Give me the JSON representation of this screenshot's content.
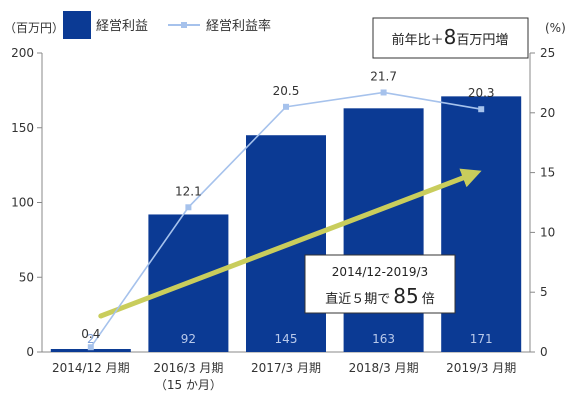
{
  "chart_data": {
    "type": "bar+line",
    "categories": [
      "2014/12 月期",
      "2016/3 月期",
      "2017/3 月期",
      "2018/3 月期",
      "2019/3 月期"
    ],
    "category_sublabels": [
      "",
      "（15 か月）",
      "",
      "",
      ""
    ],
    "series": [
      {
        "name": "経営利益",
        "type": "bar",
        "axis": "left",
        "color": "#0b3a94",
        "values": [
          2,
          92,
          145,
          163,
          171
        ],
        "labels": [
          "2",
          "92",
          "145",
          "163",
          "171"
        ]
      },
      {
        "name": "経営利益率",
        "type": "line",
        "axis": "right",
        "color": "#a6c2ec",
        "values": [
          0.4,
          12.1,
          20.5,
          21.7,
          20.3
        ],
        "labels": [
          "0.4",
          "12.1",
          "20.5",
          "21.7",
          "20.3"
        ]
      }
    ],
    "y_left": {
      "unit": "（百万円）",
      "min": 0,
      "max": 200,
      "ticks": [
        0,
        50,
        100,
        150,
        200
      ]
    },
    "y_right": {
      "unit": "(%)",
      "min": 0,
      "max": 25,
      "ticks": [
        0,
        5,
        10,
        15,
        20,
        25
      ]
    },
    "grid": false,
    "legend": "top-left",
    "trend_arrow": {
      "color": "#c9cd5c",
      "from_category": 0,
      "to_category": 4
    },
    "annotations": {
      "yoy": {
        "prefix": "前年比＋",
        "number": "8",
        "suffix": "百万円増"
      },
      "growth": {
        "line1": "2014/12-2019/3",
        "prefix": "直近５期で",
        "number": "85",
        "suffix": "倍"
      }
    }
  }
}
